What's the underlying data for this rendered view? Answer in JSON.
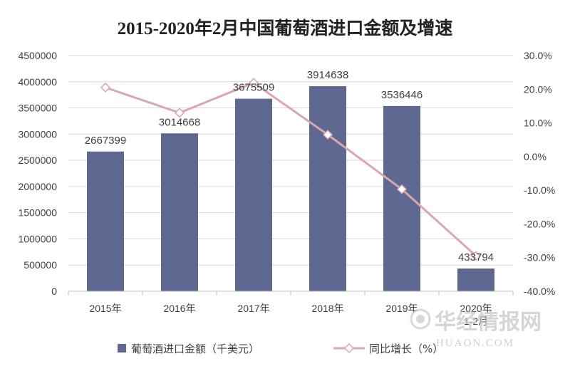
{
  "chart_data": {
    "type": "bar",
    "title": "2015-2020年2月中国葡萄酒进口金额及增速",
    "categories": [
      "2015年",
      "2016年",
      "2017年",
      "2018年",
      "2019年",
      "2020年1-2月"
    ],
    "series": [
      {
        "name": "葡萄酒进口金额（千美元）",
        "type": "bar",
        "axis": "left",
        "color": "#5e6890",
        "values": [
          2667399,
          3014668,
          3675509,
          3914638,
          3536446,
          433794
        ],
        "labels": [
          "2667399",
          "3014668",
          "3675509",
          "3914638",
          "3536446",
          "433794"
        ]
      },
      {
        "name": "同比增长（%）",
        "type": "line",
        "axis": "right",
        "color": "#d9a8ad",
        "marker": "diamond",
        "values": [
          20.5,
          13.0,
          21.9,
          6.5,
          -9.7,
          -29.5
        ]
      }
    ],
    "y_left": {
      "min": 0,
      "max": 4500000,
      "step": 500000,
      "ticks": [
        "0",
        "500000",
        "1000000",
        "1500000",
        "2000000",
        "2500000",
        "3000000",
        "3500000",
        "4000000",
        "4500000"
      ]
    },
    "y_right": {
      "min": -40,
      "max": 30,
      "step": 10,
      "ticks": [
        "-40.0%",
        "-30.0%",
        "-20.0%",
        "-10.0%",
        "0.0%",
        "10.0%",
        "20.0%",
        "30.0%"
      ]
    },
    "grid": true,
    "legend": "bottom"
  },
  "watermark": {
    "cn": "华经情报网",
    "en": "HUAON.COM"
  }
}
